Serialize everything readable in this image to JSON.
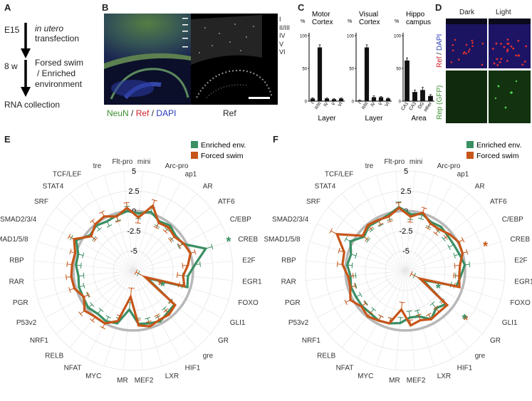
{
  "panel_letters": {
    "A": "A",
    "B": "B",
    "C": "C",
    "D": "D",
    "E": "E",
    "F": "F"
  },
  "panelA": {
    "step1_time": "E15",
    "step1_text_line1": "in utero",
    "step1_text_line2": "transfection",
    "step2_time": "8 w",
    "step2_text_line1": "Forsed swim",
    "step2_text_line2": "/ Enriched",
    "step2_text_line3": "environment",
    "step3_text": "RNA collection"
  },
  "panelB": {
    "layers": [
      "I",
      "II/III",
      "IV",
      "V",
      "VI"
    ],
    "stain_neun": "NeuN",
    "stain_sep1": " / ",
    "stain_ref": "Ref",
    "stain_sep2": " / ",
    "stain_dapi": "DAPI",
    "right_label": "Ref"
  },
  "panelC": {
    "charts": [
      {
        "title_line1": "Motor",
        "title_line2": "Cortex",
        "xlabel": "Layer",
        "categories": [
          "I",
          "II/III",
          "IV",
          "V",
          "VI"
        ],
        "values": [
          4,
          82,
          4,
          3,
          4
        ],
        "errors": [
          1,
          4,
          1,
          1,
          1
        ]
      },
      {
        "title_line1": "Visual",
        "title_line2": "Cortex",
        "xlabel": "Layer",
        "categories": [
          "I",
          "II/III",
          "IV",
          "V",
          "VI"
        ],
        "values": [
          1,
          82,
          6,
          6,
          4
        ],
        "errors": [
          1,
          4,
          2,
          1,
          1
        ]
      },
      {
        "title_line1": "Hippo",
        "title_line2": "campus",
        "xlabel": "Area",
        "categories": [
          "CA1",
          "CA3",
          "DG",
          "other"
        ],
        "values": [
          62,
          14,
          17,
          8
        ],
        "errors": [
          4,
          3,
          4,
          2
        ]
      }
    ],
    "ylabel": "%",
    "yticks": [
      "0",
      "50",
      "100"
    ]
  },
  "panelD": {
    "col1": "Dark",
    "col2": "Light",
    "row1_ref": "Ref",
    "row1_sep": " / ",
    "row1_dapi": "DAPI",
    "row2_label": "Rep (GFP)"
  },
  "chart_data": [
    {
      "type": "radar",
      "panel": "E",
      "categories": [
        "mini",
        "Arc-pro",
        "ap1",
        "AR",
        "ATF6",
        "C/EBP",
        "CREB",
        "E2F",
        "EGR1",
        "FOXO",
        "GLI1",
        "GR",
        "gre",
        "HIF1",
        "LXR",
        "MEF2",
        "MR",
        "MYC",
        "NFAT",
        "RELB",
        "NRF1",
        "P53v2",
        "PGR",
        "RAR",
        "RBP",
        "SMAD1/5/8",
        "SMAD2/3/4",
        "SRF",
        "STAT4",
        "TCF/LEF",
        "tre",
        "Flt-pro"
      ],
      "rings": [
        "5",
        "2.5",
        "0",
        "-2.5",
        "-5"
      ],
      "rlim": [
        -7.5,
        5
      ],
      "legend": [
        "Enriched env.",
        "Forced swim"
      ],
      "series": [
        {
          "name": "Enriched env.",
          "color": "#3a8f63",
          "values": [
            -0.3,
            0.2,
            -0.5,
            -0.2,
            -0.6,
            -0.4,
            2.0,
            0.3,
            -0.6,
            -0.4,
            -5.5,
            -0.8,
            -0.7,
            -0.3,
            -0.6,
            -0.8,
            -2.6,
            -0.6,
            -0.3,
            -0.5,
            -0.2,
            -0.4,
            -0.4,
            -0.6,
            -0.3,
            -0.3,
            0.6,
            -0.5,
            -0.2,
            -0.5,
            -0.3,
            0.0
          ]
        },
        {
          "name": "Forced swim",
          "color": "#c65519",
          "values": [
            -0.8,
            1.0,
            -0.7,
            -0.5,
            -0.8,
            -0.3,
            0.0,
            -0.6,
            -1.2,
            -0.8,
            -5.8,
            -0.7,
            -0.4,
            -0.5,
            -0.2,
            -0.6,
            -4.2,
            -0.9,
            0.0,
            0.0,
            0.4,
            -0.5,
            0.2,
            0.3,
            0.2,
            0.1,
            0.9,
            -0.7,
            0.0,
            0.2,
            -0.4,
            0.4
          ]
        }
      ],
      "significance": [
        {
          "category": "CREB",
          "series": "Enriched env.",
          "mark": "*"
        },
        {
          "category": "GLI1",
          "series": "Forced swim",
          "mark": "*"
        },
        {
          "category": "GLI1",
          "series": "Enriched env.",
          "mark": "*"
        }
      ]
    },
    {
      "type": "radar",
      "panel": "F",
      "categories": [
        "mini",
        "Arc-pro",
        "ap1",
        "AR",
        "ATF6",
        "C/EBP",
        "CREB",
        "E2F",
        "EGR1",
        "FOXO",
        "GLI1",
        "GR",
        "gre",
        "HIF1",
        "LXR",
        "MEF2",
        "MR",
        "MYC",
        "NFAT",
        "RELB",
        "NRF1",
        "P53v2",
        "PGR",
        "RAR",
        "RBP",
        "SMAD1/5/8",
        "SMAD2/3/4",
        "SRF",
        "STAT4",
        "TCF/LEF",
        "tre",
        "Flt-pro"
      ],
      "rings": [
        "5",
        "2.5",
        "0",
        "-2.5",
        "-5"
      ],
      "rlim": [
        -7.5,
        5
      ],
      "legend": [
        "Enriched env.",
        "Forced swim"
      ],
      "series": [
        {
          "name": "Enriched env.",
          "color": "#3a8f63",
          "values": [
            -0.4,
            -0.1,
            -0.6,
            -0.4,
            -0.6,
            -0.6,
            -0.4,
            0.0,
            -0.5,
            -0.8,
            -5.0,
            -0.9,
            -1.4,
            -0.6,
            -1.5,
            -1.6,
            -0.9,
            -0.6,
            -0.4,
            -0.6,
            -0.5,
            -0.5,
            -0.4,
            -0.6,
            -0.2,
            -0.4,
            0.3,
            -0.8,
            -0.3,
            -0.4,
            -0.2,
            0.5
          ]
        },
        {
          "name": "Forced swim",
          "color": "#c65519",
          "values": [
            -0.7,
            0.1,
            -0.8,
            -0.8,
            -0.3,
            0.1,
            0.0,
            -0.6,
            -0.7,
            -0.4,
            -5.4,
            -0.7,
            -0.8,
            -0.6,
            -1.0,
            -0.6,
            -2.6,
            -0.6,
            -0.4,
            -0.1,
            -0.4,
            0.3,
            -0.3,
            -0.3,
            0.4,
            0.5,
            2.2,
            -0.6,
            -0.1,
            -0.3,
            -0.4,
            0.4
          ]
        }
      ],
      "significance": [
        {
          "category": "CREB",
          "series": "Forced swim",
          "mark": "*"
        },
        {
          "category": "GLI1",
          "series": "Enriched env.",
          "mark": "*"
        },
        {
          "category": "GR",
          "series": "Forced swim",
          "mark": "*"
        },
        {
          "category": "GR",
          "series": "Enriched env.",
          "mark": "*"
        }
      ]
    }
  ]
}
